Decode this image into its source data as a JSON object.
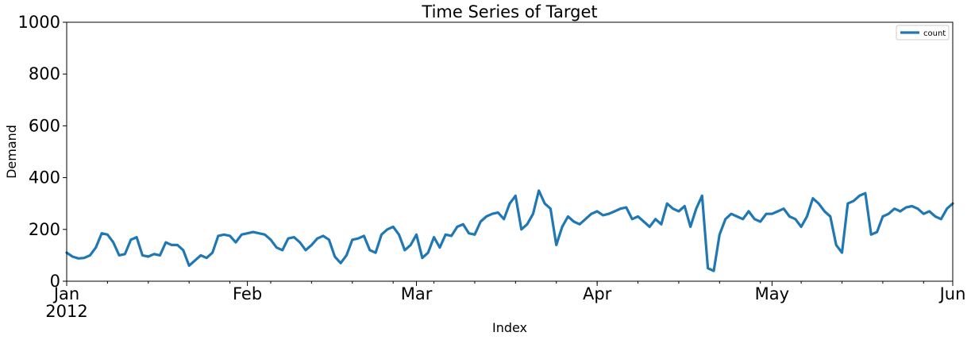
{
  "colors": {
    "series": "#1f77b4",
    "axis": "#000000",
    "background": "#ffffff",
    "legend_border": "#cccccc"
  },
  "chart_data": {
    "type": "line",
    "title": "Time Series of Target",
    "xlabel": "Index",
    "ylabel": "Demand",
    "ylim": [
      0,
      1000
    ],
    "yticks": [
      0,
      200,
      400,
      600,
      800,
      1000
    ],
    "xlim": [
      "2012-01-01",
      "2012-06-01"
    ],
    "xticks": [
      {
        "date": "2012-01-01",
        "label": "Jan",
        "sublabel": "2012"
      },
      {
        "date": "2012-02-01",
        "label": "Feb"
      },
      {
        "date": "2012-03-01",
        "label": "Mar"
      },
      {
        "date": "2012-04-01",
        "label": "Apr"
      },
      {
        "date": "2012-05-01",
        "label": "May"
      },
      {
        "date": "2012-06-01",
        "label": "Jun"
      }
    ],
    "grid": false,
    "legend": {
      "position": "top-right",
      "entries": [
        "count"
      ]
    },
    "series": [
      {
        "name": "count",
        "x": [
          "2012-01-01",
          "2012-01-02",
          "2012-01-03",
          "2012-01-04",
          "2012-01-05",
          "2012-01-06",
          "2012-01-07",
          "2012-01-08",
          "2012-01-09",
          "2012-01-10",
          "2012-01-11",
          "2012-01-12",
          "2012-01-13",
          "2012-01-14",
          "2012-01-15",
          "2012-01-16",
          "2012-01-17",
          "2012-01-18",
          "2012-01-19",
          "2012-01-20",
          "2012-01-21",
          "2012-01-22",
          "2012-01-23",
          "2012-01-24",
          "2012-01-25",
          "2012-01-26",
          "2012-01-27",
          "2012-01-28",
          "2012-01-29",
          "2012-01-30",
          "2012-01-31",
          "2012-02-01",
          "2012-02-02",
          "2012-02-03",
          "2012-02-04",
          "2012-02-05",
          "2012-02-06",
          "2012-02-07",
          "2012-02-08",
          "2012-02-09",
          "2012-02-10",
          "2012-02-11",
          "2012-02-12",
          "2012-02-13",
          "2012-02-14",
          "2012-02-15",
          "2012-02-16",
          "2012-02-17",
          "2012-02-18",
          "2012-02-19",
          "2012-02-20",
          "2012-02-21",
          "2012-02-22",
          "2012-02-23",
          "2012-02-24",
          "2012-02-25",
          "2012-02-26",
          "2012-02-27",
          "2012-02-28",
          "2012-02-29",
          "2012-03-01",
          "2012-03-02",
          "2012-03-03",
          "2012-03-04",
          "2012-03-05",
          "2012-03-06",
          "2012-03-07",
          "2012-03-08",
          "2012-03-09",
          "2012-03-10",
          "2012-03-11",
          "2012-03-12",
          "2012-03-13",
          "2012-03-14",
          "2012-03-15",
          "2012-03-16",
          "2012-03-17",
          "2012-03-18",
          "2012-03-19",
          "2012-03-20",
          "2012-03-21",
          "2012-03-22",
          "2012-03-23",
          "2012-03-24",
          "2012-03-25",
          "2012-03-26",
          "2012-03-27",
          "2012-03-28",
          "2012-03-29",
          "2012-03-30",
          "2012-03-31",
          "2012-04-01",
          "2012-04-02",
          "2012-04-03",
          "2012-04-04",
          "2012-04-05",
          "2012-04-06",
          "2012-04-07",
          "2012-04-08",
          "2012-04-09",
          "2012-04-10",
          "2012-04-11",
          "2012-04-12",
          "2012-04-13",
          "2012-04-14",
          "2012-04-15",
          "2012-04-16",
          "2012-04-17",
          "2012-04-18",
          "2012-04-19",
          "2012-04-20",
          "2012-04-21",
          "2012-04-22",
          "2012-04-23",
          "2012-04-24",
          "2012-04-25",
          "2012-04-26",
          "2012-04-27",
          "2012-04-28",
          "2012-04-29",
          "2012-04-30",
          "2012-05-01",
          "2012-05-02",
          "2012-05-03",
          "2012-05-04",
          "2012-05-05",
          "2012-05-06",
          "2012-05-07",
          "2012-05-08",
          "2012-05-09",
          "2012-05-10",
          "2012-05-11",
          "2012-05-12",
          "2012-05-13",
          "2012-05-14",
          "2012-05-15",
          "2012-05-16",
          "2012-05-17",
          "2012-05-18",
          "2012-05-19",
          "2012-05-20",
          "2012-05-21",
          "2012-05-22",
          "2012-05-23",
          "2012-05-24",
          "2012-05-25",
          "2012-05-26",
          "2012-05-27",
          "2012-05-28",
          "2012-05-29",
          "2012-05-30",
          "2012-05-31",
          "2012-06-01"
        ],
        "values": [
          110,
          95,
          88,
          90,
          100,
          130,
          185,
          180,
          150,
          100,
          105,
          160,
          170,
          100,
          95,
          105,
          100,
          150,
          140,
          140,
          120,
          60,
          80,
          100,
          90,
          110,
          175,
          180,
          175,
          150,
          180,
          185,
          190,
          185,
          180,
          160,
          130,
          120,
          165,
          170,
          150,
          120,
          140,
          165,
          175,
          160,
          95,
          70,
          100,
          160,
          165,
          175,
          120,
          110,
          180,
          200,
          210,
          180,
          120,
          140,
          180,
          90,
          110,
          170,
          130,
          180,
          175,
          210,
          220,
          185,
          180,
          230,
          250,
          260,
          265,
          240,
          300,
          330,
          200,
          220,
          260,
          350,
          300,
          280,
          140,
          210,
          250,
          230,
          220,
          240,
          260,
          270,
          255,
          260,
          270,
          280,
          285,
          240,
          250,
          230,
          210,
          240,
          220,
          300,
          280,
          270,
          290,
          210,
          280,
          330,
          50,
          40,
          180,
          240,
          260,
          250,
          240,
          270,
          240,
          230,
          260,
          260,
          270,
          280,
          250,
          240,
          210,
          250,
          320,
          300,
          270,
          250,
          140,
          110,
          300,
          310,
          330,
          340,
          180,
          190,
          250,
          260,
          280,
          270,
          285,
          290,
          280,
          260,
          270,
          250,
          240,
          280,
          300
        ]
      }
    ]
  }
}
